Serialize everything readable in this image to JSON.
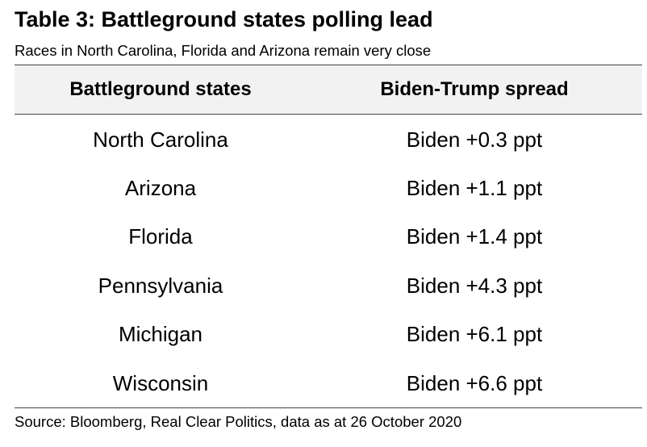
{
  "title": "Table 3: Battleground states polling lead",
  "subtitle": "Races in North Carolina, Florida and Arizona remain very close",
  "table": {
    "headers": [
      "Battleground states",
      "Biden-Trump spread"
    ],
    "rows": [
      [
        "North Carolina",
        "Biden +0.3 ppt"
      ],
      [
        "Arizona",
        "Biden +1.1 ppt"
      ],
      [
        "Florida",
        "Biden +1.4 ppt"
      ],
      [
        "Pennsylvania",
        "Biden +4.3 ppt"
      ],
      [
        "Michigan",
        "Biden +6.1 ppt"
      ],
      [
        "Wisconsin",
        "Biden +6.6 ppt"
      ]
    ]
  },
  "source": "Source: Bloomberg, Real Clear Politics, data as at 26 October 2020"
}
